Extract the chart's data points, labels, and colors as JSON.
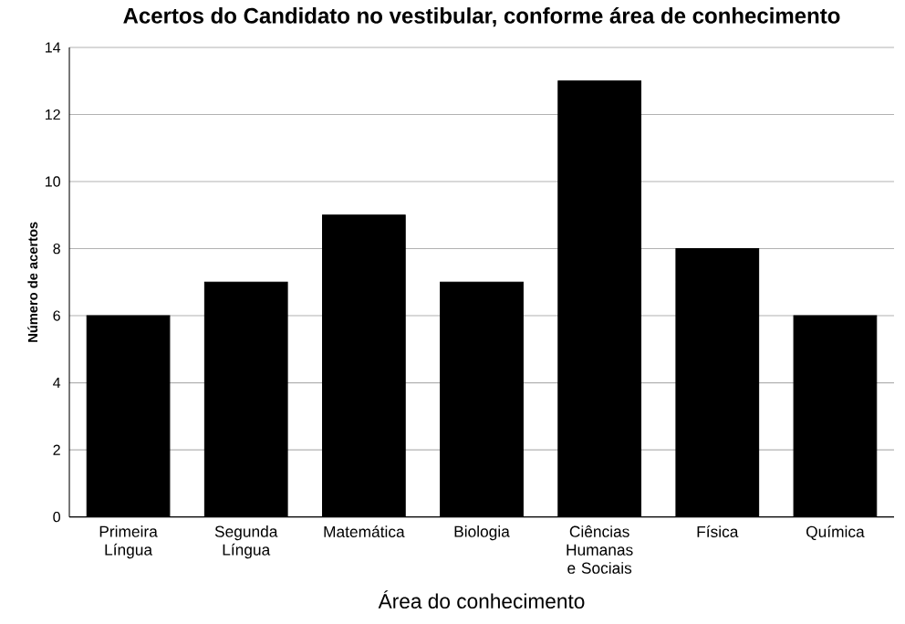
{
  "chart_data": {
    "type": "bar",
    "title": "Acertos do Candidato no vestibular, conforme área de conhecimento",
    "xlabel": "Área do conhecimento",
    "ylabel": "Número de acertos",
    "categories": [
      "Primeira Língua",
      "Segunda Língua",
      "Matemática",
      "Biologia",
      "Ciências Humanas e Sociais",
      "Física",
      "Química"
    ],
    "values": [
      6,
      7,
      9,
      7,
      13,
      8,
      6
    ],
    "color": "#000000",
    "ylim": [
      0,
      14
    ],
    "yticks": [
      0,
      2,
      4,
      6,
      8,
      10,
      12,
      14
    ],
    "grid": "y"
  }
}
